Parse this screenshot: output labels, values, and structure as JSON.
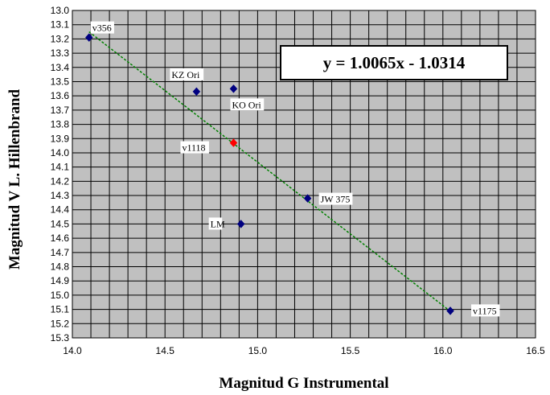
{
  "chart_data": {
    "type": "scatter",
    "title": "",
    "xlabel": "Magnitud G Instrumental",
    "ylabel": "Magnitud V L. Hillenbrand",
    "xlim": [
      14.0,
      16.5
    ],
    "ylim": [
      15.3,
      13.0
    ],
    "y_axis_inverted": true,
    "x_major_ticks": [
      "14.0",
      "14.5",
      "15.0",
      "15.5",
      "16.0",
      "16.5"
    ],
    "x_minor_step": 0.1,
    "y_ticks": [
      "13.0",
      "13.1",
      "13.2",
      "13.3",
      "13.4",
      "13.5",
      "13.6",
      "13.7",
      "13.8",
      "13.9",
      "14.0",
      "14.1",
      "14.2",
      "14.3",
      "14.4",
      "14.5",
      "14.6",
      "14.7",
      "14.8",
      "14.9",
      "15.0",
      "15.1",
      "15.2",
      "15.3"
    ],
    "grid": true,
    "plot_background": "#c0c0c0",
    "points": [
      {
        "label": "v356",
        "x": 14.09,
        "y": 13.19,
        "color": "#000080"
      },
      {
        "label": "KZ Ori",
        "x": 14.67,
        "y": 13.57,
        "color": "#000080"
      },
      {
        "label": "KO Ori",
        "x": 14.87,
        "y": 13.55,
        "color": "#000080"
      },
      {
        "label": "v1118",
        "x": 14.87,
        "y": 13.93,
        "color": "#ff0000"
      },
      {
        "label": "JW 375",
        "x": 15.27,
        "y": 14.32,
        "color": "#000080"
      },
      {
        "label": "LM",
        "x": 14.91,
        "y": 14.5,
        "color": "#000080"
      },
      {
        "label": "v1175",
        "x": 16.04,
        "y": 15.11,
        "color": "#000080"
      }
    ],
    "trendline": {
      "equation": "y = 1.0065x - 1.0314",
      "slope": 1.0065,
      "intercept": -1.0314,
      "x_range": [
        14.09,
        16.04
      ],
      "color": "#008000",
      "style": "dashed"
    }
  }
}
